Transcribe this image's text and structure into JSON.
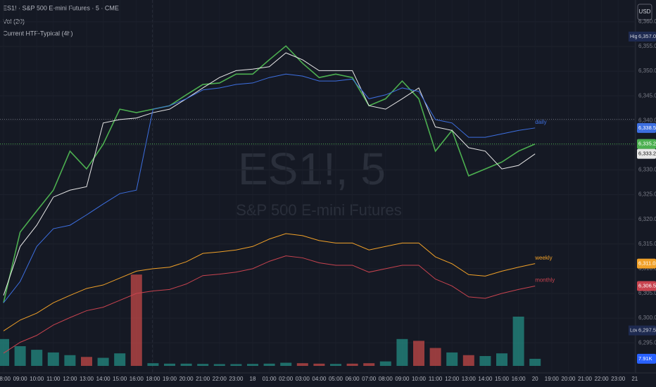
{
  "chart_data": {
    "type": "line",
    "currency": "USD",
    "watermark": {
      "symbol": "ES1!, 5",
      "description": "S&P 500 E-mini Futures"
    },
    "categories": [
      "08:00",
      "09:00",
      "10:00",
      "11:00",
      "12:00",
      "13:00",
      "14:00",
      "15:00",
      "16:00",
      "18:00",
      "19:00",
      "20:00",
      "21:00",
      "22:00",
      "23:00",
      "18",
      "01:00",
      "02:00",
      "03:00",
      "04:00",
      "05:00",
      "06:00",
      "07:00",
      "08:00",
      "09:00",
      "10:00",
      "11:00",
      "12:00",
      "13:00",
      "14:00",
      "15:00",
      "16:00",
      "20",
      "19:00",
      "20:00",
      "21:00",
      "22:00",
      "23:00",
      "21"
    ],
    "ylim": [
      6288.9,
      6364.4
    ],
    "yticks": [
      {
        "value": 6295,
        "label": "6,295.00"
      },
      {
        "value": 6300,
        "label": "6,300.00"
      },
      {
        "value": 6305,
        "label": "6,305.00"
      },
      {
        "value": 6310,
        "label": "6,310.00"
      },
      {
        "value": 6315,
        "label": "6,315.00"
      },
      {
        "value": 6320,
        "label": "6,320.00"
      },
      {
        "value": 6325,
        "label": "6,325.00"
      },
      {
        "value": 6330,
        "label": "6,330.00"
      },
      {
        "value": 6335,
        "label": "6,335.00"
      },
      {
        "value": 6340,
        "label": "6,340.00"
      },
      {
        "value": 6345,
        "label": "6,345.00"
      },
      {
        "value": 6350,
        "label": "6,350.00"
      },
      {
        "value": 6355,
        "label": "6,355.00"
      },
      {
        "value": 6360,
        "label": "6,360.00"
      }
    ],
    "grid": true,
    "series": [
      {
        "name": "ES1! · S&P 500 E-mini Futures · 5 · CME",
        "color": "#4caf50",
        "last_label": "6,335.25",
        "values": [
          6303.1,
          6317.4,
          6321.7,
          6325.9,
          6333.8,
          6330.2,
          6335.2,
          6342.3,
          6341.6,
          6342.3,
          6343.0,
          6345.2,
          6347.3,
          6347.6,
          6349.4,
          6349.4,
          6352.3,
          6355.1,
          6351.6,
          6348.7,
          6349.4,
          6348.7,
          6343.0,
          6344.4,
          6348.0,
          6344.4,
          6333.8,
          6338.0,
          6328.8,
          6330.2,
          6331.6,
          6333.8,
          6335.25,
          null,
          null,
          null,
          null,
          null,
          null
        ]
      },
      {
        "name": "Current HTF-Typical (4h)",
        "color": "#e8e8e8",
        "last_label": "6,333.25",
        "values": [
          6304.6,
          6314.5,
          6318.8,
          6324.5,
          6325.9,
          6326.6,
          6339.5,
          6340.2,
          6340.5,
          6341.6,
          6342.3,
          6344.4,
          6346.6,
          6348.7,
          6350.1,
          6350.4,
          6350.9,
          6353.7,
          6352.3,
          6350.1,
          6350.1,
          6350.1,
          6343.0,
          6342.3,
          6344.4,
          6346.6,
          6338.7,
          6338.0,
          6334.5,
          6333.8,
          6330.2,
          6330.9,
          6333.25,
          null,
          null,
          null,
          null,
          null,
          null
        ]
      },
      {
        "name": "daily",
        "color": "#3d6fe0",
        "last_label": "6,338.50",
        "values": [
          6303.1,
          6307.4,
          6314.5,
          6318.1,
          6318.8,
          6320.9,
          6323.1,
          6325.2,
          6325.9,
          6342.3,
          6343.0,
          6344.4,
          6346.2,
          6346.6,
          6347.3,
          6347.6,
          6348.7,
          6349.4,
          6349.0,
          6348.0,
          6348.0,
          6348.4,
          6344.4,
          6345.2,
          6346.6,
          6345.9,
          6340.2,
          6339.5,
          6336.6,
          6336.6,
          6337.3,
          6338.0,
          6338.5,
          null,
          null,
          null,
          null,
          null,
          null
        ]
      },
      {
        "name": "weekly",
        "color": "#f0a028",
        "last_label": "6,311.03",
        "values": [
          6297.4,
          6299.6,
          6301.0,
          6303.1,
          6304.6,
          6306.0,
          6306.7,
          6308.1,
          6309.5,
          6310.0,
          6310.3,
          6311.4,
          6313.1,
          6313.4,
          6313.8,
          6314.5,
          6316.0,
          6317.1,
          6316.7,
          6315.7,
          6315.2,
          6315.2,
          6313.8,
          6314.5,
          6315.2,
          6315.2,
          6312.4,
          6311.0,
          6308.8,
          6308.5,
          6309.5,
          6310.3,
          6311.03,
          null,
          null,
          null,
          null,
          null,
          null
        ]
      },
      {
        "name": "monthly",
        "color": "#c8434f",
        "last_label": "6,306.50",
        "values": [
          6292.9,
          6295.1,
          6296.5,
          6298.6,
          6300.1,
          6301.5,
          6302.2,
          6303.6,
          6305.0,
          6305.5,
          6305.8,
          6306.9,
          6308.6,
          6308.9,
          6309.3,
          6310.0,
          6311.5,
          6312.6,
          6312.2,
          6311.2,
          6310.7,
          6310.7,
          6309.3,
          6310.0,
          6310.7,
          6310.7,
          6307.9,
          6306.5,
          6304.3,
          6304.0,
          6305.0,
          6305.8,
          6306.5,
          null,
          null,
          null,
          null,
          null,
          null
        ]
      }
    ],
    "reference_lines": [
      6340.25
    ],
    "extremes": [
      {
        "label": "High",
        "value": 6357,
        "value_label": "6,357.00"
      },
      {
        "label": "Low",
        "value": 6297.5,
        "value_label": "6,297.50"
      }
    ],
    "volume": {
      "name": "Vol (20)",
      "ylim": [
        0,
        110000
      ],
      "up_color": "#26a69a",
      "down_color": "#ef5350",
      "last_label": "7.91K",
      "values": [
        30000,
        22000,
        18000,
        15000,
        12000,
        10000,
        9000,
        14000,
        102000,
        3000,
        2500,
        2500,
        2200,
        2000,
        2000,
        2200,
        2500,
        3500,
        3000,
        2500,
        2200,
        2500,
        3000,
        5000,
        30000,
        28000,
        20000,
        15000,
        12000,
        11000,
        14000,
        55000,
        7910,
        null,
        null,
        null,
        null,
        null,
        null
      ]
    }
  }
}
